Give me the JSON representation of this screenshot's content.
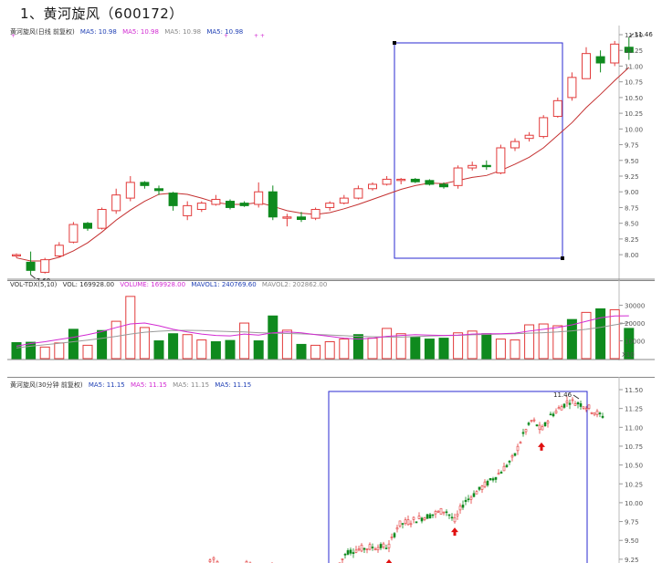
{
  "page_title": "1、黄河旋风（600172）",
  "daily": {
    "name": "黄河旋风(日线 前复权)",
    "ma_labels": [
      {
        "text": "MA5: 10.98",
        "color": "#1f3fb4"
      },
      {
        "text": "MA5: 10.98",
        "color": "#d22ad2"
      },
      {
        "text": "MA5: 10.98",
        "color": "#888888"
      },
      {
        "text": "MA5: 10.98",
        "color": "#1f3fb4"
      }
    ],
    "y_ticks": [
      "11.50",
      "11.25",
      "11.00",
      "10.75",
      "10.50",
      "10.25",
      "10.00",
      "9.75",
      "9.50",
      "9.25",
      "9.00",
      "8.75",
      "8.50",
      "8.25",
      "8.00"
    ],
    "high_label": "11.46",
    "low_label": "7.68"
  },
  "volume": {
    "header": [
      {
        "text": "VOL-TDX(5,10)",
        "color": "#333333"
      },
      {
        "text": "VOL: 169928.00",
        "color": "#333333"
      },
      {
        "text": "VOLUME: 169928.00",
        "color": "#d22ad2"
      },
      {
        "text": "MAVOL1: 240769.60",
        "color": "#1f3fb4"
      },
      {
        "text": "MAVOL2: 202862.00",
        "color": "#888888"
      }
    ],
    "y_ticks": [
      "30000",
      "20000",
      "10000"
    ],
    "unit": "X10"
  },
  "intraday": {
    "name": "黄河旋风(30分钟 前复权)",
    "ma_labels": [
      {
        "text": "MA5: 11.15",
        "color": "#1f3fb4"
      },
      {
        "text": "MA5: 11.15",
        "color": "#d22ad2"
      },
      {
        "text": "MA5: 11.15",
        "color": "#888888"
      },
      {
        "text": "MA5: 11.15",
        "color": "#1f3fb4"
      }
    ],
    "y_ticks": [
      "11.50",
      "11.25",
      "11.00",
      "10.75",
      "10.50",
      "10.25",
      "10.00",
      "9.75",
      "9.50",
      "9.25"
    ],
    "high_label": "11.46"
  },
  "colors": {
    "up": "#e23b3b",
    "down": "#0f8a1e",
    "ma": "#c43030",
    "box": "#2a2ad0",
    "vol_ma1": "#d22ad2",
    "vol_ma2": "#9a9a9a"
  },
  "chart_data": [
    {
      "type": "candlestick",
      "title": "黄河旋风(日线 前复权)",
      "y_range": [
        7.68,
        11.46
      ],
      "candles": [
        {
          "o": 7.98,
          "h": 8.02,
          "l": 7.95,
          "c": 8.0
        },
        {
          "o": 7.88,
          "h": 8.05,
          "l": 7.68,
          "c": 7.75
        },
        {
          "o": 7.72,
          "h": 7.95,
          "l": 7.7,
          "c": 7.92
        },
        {
          "o": 7.98,
          "h": 8.2,
          "l": 7.95,
          "c": 8.15
        },
        {
          "o": 8.2,
          "h": 8.52,
          "l": 8.18,
          "c": 8.48
        },
        {
          "o": 8.5,
          "h": 8.52,
          "l": 8.38,
          "c": 8.42
        },
        {
          "o": 8.42,
          "h": 8.75,
          "l": 8.4,
          "c": 8.72
        },
        {
          "o": 8.7,
          "h": 9.05,
          "l": 8.65,
          "c": 8.95
        },
        {
          "o": 8.9,
          "h": 9.25,
          "l": 8.85,
          "c": 9.15
        },
        {
          "o": 9.15,
          "h": 9.17,
          "l": 9.05,
          "c": 9.1
        },
        {
          "o": 9.05,
          "h": 9.1,
          "l": 8.95,
          "c": 9.02
        },
        {
          "o": 8.98,
          "h": 9.0,
          "l": 8.7,
          "c": 8.78
        },
        {
          "o": 8.62,
          "h": 8.85,
          "l": 8.55,
          "c": 8.78
        },
        {
          "o": 8.72,
          "h": 8.85,
          "l": 8.68,
          "c": 8.82
        },
        {
          "o": 8.8,
          "h": 8.95,
          "l": 8.78,
          "c": 8.88
        },
        {
          "o": 8.85,
          "h": 8.88,
          "l": 8.72,
          "c": 8.75
        },
        {
          "o": 8.82,
          "h": 8.85,
          "l": 8.76,
          "c": 8.78
        },
        {
          "o": 8.8,
          "h": 9.15,
          "l": 8.75,
          "c": 9.0
        },
        {
          "o": 9.0,
          "h": 9.1,
          "l": 8.55,
          "c": 8.6
        },
        {
          "o": 8.58,
          "h": 8.65,
          "l": 8.45,
          "c": 8.6
        },
        {
          "o": 8.6,
          "h": 8.68,
          "l": 8.52,
          "c": 8.56
        },
        {
          "o": 8.58,
          "h": 8.75,
          "l": 8.55,
          "c": 8.72
        },
        {
          "o": 8.75,
          "h": 8.85,
          "l": 8.7,
          "c": 8.82
        },
        {
          "o": 8.82,
          "h": 8.95,
          "l": 8.8,
          "c": 8.9
        },
        {
          "o": 8.9,
          "h": 9.1,
          "l": 8.88,
          "c": 9.05
        },
        {
          "o": 9.05,
          "h": 9.15,
          "l": 9.02,
          "c": 9.12
        },
        {
          "o": 9.12,
          "h": 9.25,
          "l": 9.1,
          "c": 9.2
        },
        {
          "o": 9.18,
          "h": 9.22,
          "l": 9.12,
          "c": 9.2
        },
        {
          "o": 9.2,
          "h": 9.22,
          "l": 9.14,
          "c": 9.16
        },
        {
          "o": 9.18,
          "h": 9.2,
          "l": 9.1,
          "c": 9.12
        },
        {
          "o": 9.12,
          "h": 9.15,
          "l": 9.05,
          "c": 9.08
        },
        {
          "o": 9.1,
          "h": 9.42,
          "l": 9.05,
          "c": 9.38
        },
        {
          "o": 9.38,
          "h": 9.48,
          "l": 9.34,
          "c": 9.42
        },
        {
          "o": 9.42,
          "h": 9.5,
          "l": 9.35,
          "c": 9.4
        },
        {
          "o": 9.3,
          "h": 9.75,
          "l": 9.28,
          "c": 9.7
        },
        {
          "o": 9.7,
          "h": 9.85,
          "l": 9.65,
          "c": 9.8
        },
        {
          "o": 9.85,
          "h": 9.95,
          "l": 9.8,
          "c": 9.9
        },
        {
          "o": 9.88,
          "h": 10.22,
          "l": 9.85,
          "c": 10.18
        },
        {
          "o": 10.2,
          "h": 10.5,
          "l": 10.18,
          "c": 10.45
        },
        {
          "o": 10.5,
          "h": 10.9,
          "l": 10.45,
          "c": 10.82
        },
        {
          "o": 10.8,
          "h": 11.3,
          "l": 10.8,
          "c": 11.2
        },
        {
          "o": 11.15,
          "h": 11.25,
          "l": 10.9,
          "c": 11.05
        },
        {
          "o": 11.05,
          "h": 11.4,
          "l": 11.0,
          "c": 11.35
        },
        {
          "o": 11.3,
          "h": 11.46,
          "l": 11.1,
          "c": 11.22
        }
      ],
      "ma_line": [
        7.95,
        7.9,
        7.9,
        7.96,
        8.06,
        8.19,
        8.36,
        8.55,
        8.71,
        8.85,
        8.96,
        8.98,
        8.96,
        8.9,
        8.83,
        8.8,
        8.8,
        8.83,
        8.77,
        8.7,
        8.66,
        8.64,
        8.67,
        8.73,
        8.8,
        8.88,
        8.96,
        9.04,
        9.1,
        9.14,
        9.13,
        9.18,
        9.23,
        9.26,
        9.34,
        9.44,
        9.55,
        9.7,
        9.9,
        10.1,
        10.34,
        10.55,
        10.77,
        10.98
      ]
    },
    {
      "type": "bar",
      "title": "VOL-TDX(5,10)",
      "values": [
        9000,
        9200,
        6500,
        8800,
        16500,
        7500,
        15800,
        21000,
        35000,
        17500,
        10000,
        14000,
        13500,
        10500,
        9500,
        10200,
        20000,
        10000,
        24000,
        16000,
        8000,
        7500,
        9500,
        11000,
        13500,
        11500,
        17000,
        14000,
        12000,
        11000,
        11500,
        14500,
        15500,
        14000,
        11000,
        10500,
        19000,
        19500,
        18500,
        22000,
        26000,
        28000,
        27500,
        17000
      ],
      "ma1": [
        7000,
        8500,
        9500,
        10800,
        12000,
        13500,
        15200,
        17500,
        19500,
        20000,
        18500,
        16500,
        15000,
        13800,
        13000,
        12800,
        13800,
        13200,
        14500,
        15000,
        14500,
        13500,
        12500,
        11500,
        11000,
        11500,
        12500,
        13000,
        13500,
        13200,
        13000,
        13200,
        13800,
        14000,
        14000,
        14300,
        15500,
        16500,
        17500,
        19000,
        21000,
        23000,
        24000,
        24077
      ],
      "ma2": [
        6000,
        7000,
        7800,
        8600,
        9500,
        10400,
        11400,
        12500,
        13800,
        14800,
        15400,
        15800,
        15900,
        15800,
        15500,
        15200,
        15000,
        14600,
        14300,
        14100,
        13900,
        13600,
        13300,
        12900,
        12500,
        12300,
        12100,
        12100,
        12400,
        12700,
        12900,
        13100,
        13400,
        13600,
        13800,
        14000,
        14300,
        14600,
        15000,
        15600,
        16500,
        17600,
        19000,
        20286
      ],
      "colors_by_bar": [
        "down",
        "down",
        "up",
        "up",
        "down",
        "up",
        "down",
        "up",
        "up",
        "up",
        "down",
        "down",
        "up",
        "up",
        "down",
        "down",
        "up",
        "down",
        "down",
        "up",
        "down",
        "up",
        "up",
        "up",
        "down",
        "up",
        "up",
        "up",
        "down",
        "down",
        "down",
        "up",
        "up",
        "down",
        "up",
        "up",
        "up",
        "up",
        "up",
        "down",
        "up",
        "down",
        "up",
        "down"
      ]
    },
    {
      "type": "candlestick",
      "title": "黄河旋风(30分钟 前复权)",
      "y_range": [
        9.25,
        11.46
      ]
    }
  ]
}
